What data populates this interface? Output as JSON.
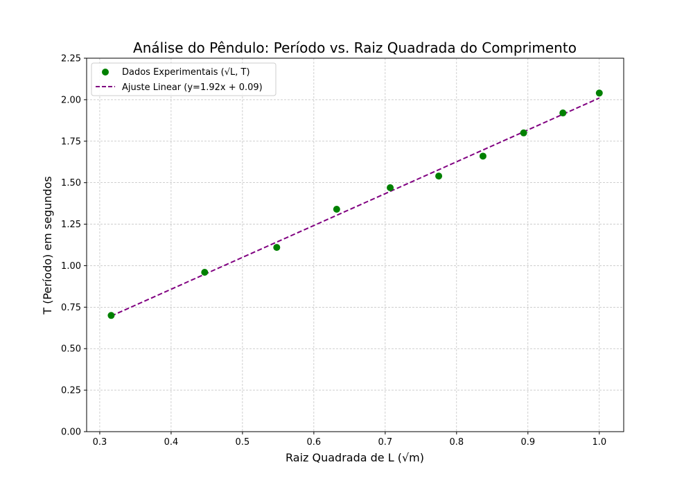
{
  "chart_data": {
    "type": "scatter",
    "title": "Análise do Pêndulo: Período vs. Raiz Quadrada do Comprimento",
    "xlabel": "Raiz Quadrada de L (√m)",
    "ylabel": "T (Período) em segundos",
    "xlim": [
      0.2816,
      1.0342
    ],
    "ylim": [
      0,
      2.25
    ],
    "x_ticks": [
      0.3,
      0.4,
      0.5,
      0.6,
      0.7,
      0.8,
      0.9,
      1.0
    ],
    "x_tick_labels": [
      "0.3",
      "0.4",
      "0.5",
      "0.6",
      "0.7",
      "0.8",
      "0.9",
      "1.0"
    ],
    "y_ticks": [
      0,
      0.25,
      0.5,
      0.75,
      1.0,
      1.25,
      1.5,
      1.75,
      2.0,
      2.25
    ],
    "y_tick_labels": [
      "0.00",
      "0.25",
      "0.50",
      "0.75",
      "1.00",
      "1.25",
      "1.50",
      "1.75",
      "2.00",
      "2.25"
    ],
    "grid": true,
    "legend_position": "upper-left",
    "series": [
      {
        "name": "Dados Experimentais (√L, T)",
        "kind": "scatter",
        "color": "#008000",
        "x": [
          0.316,
          0.447,
          0.548,
          0.632,
          0.707,
          0.775,
          0.837,
          0.894,
          0.949,
          1.0
        ],
        "y": [
          0.7,
          0.96,
          1.11,
          1.34,
          1.47,
          1.54,
          1.66,
          1.8,
          1.92,
          2.04
        ]
      },
      {
        "name": "Ajuste Linear (y=1.92x + 0.09)",
        "kind": "line",
        "style": "dashed",
        "color": "#800080",
        "slope": 1.92,
        "intercept": 0.09,
        "x_range": [
          0.316,
          1.0
        ]
      }
    ]
  }
}
